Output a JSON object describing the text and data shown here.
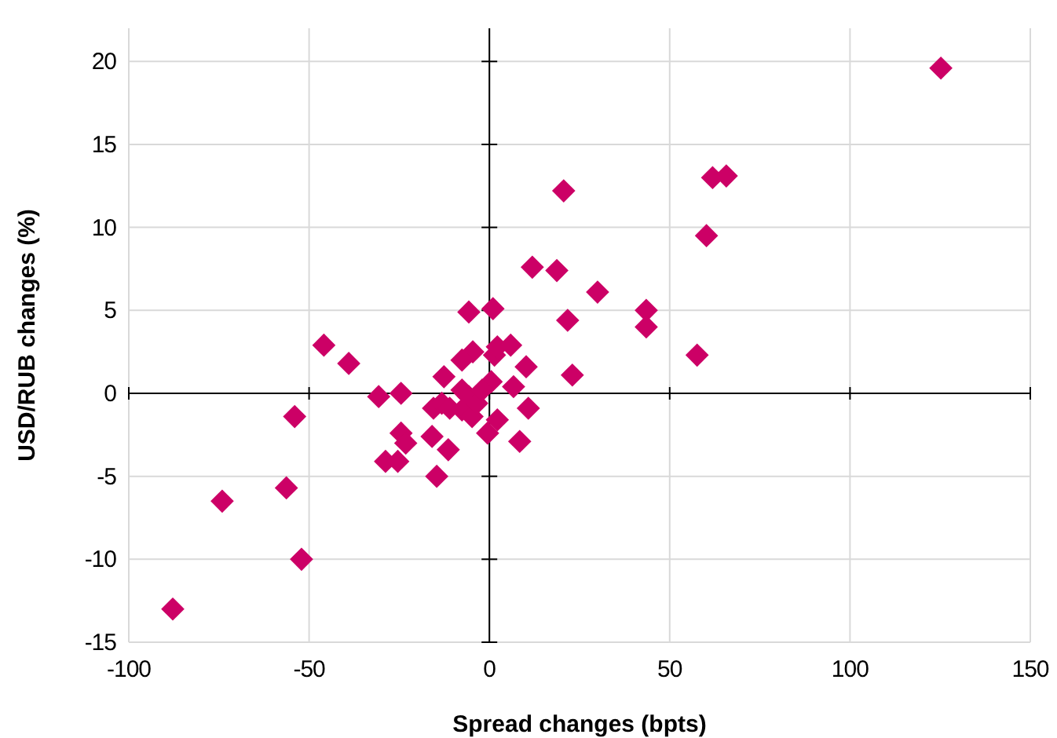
{
  "chart_data": {
    "type": "scatter",
    "xlabel": "Spread changes (bpts)",
    "ylabel": "USD/RUB changes (%)",
    "xlim": [
      -100,
      150
    ],
    "xticks": [
      -100,
      -50,
      0,
      50,
      100,
      150
    ],
    "ylim": [
      -15,
      22
    ],
    "yticks": [
      -15,
      -10,
      -5,
      0,
      5,
      10,
      15,
      20
    ],
    "grid": true,
    "marker": "diamond",
    "series": [
      {
        "color": "#cc0066",
        "x": [
          -87.8,
          -74.1,
          -56.3,
          -52.1,
          -54.0,
          -45.9,
          -39.0,
          -30.7,
          -24.5,
          -24.5,
          -23.2,
          -28.8,
          -25.4,
          -15.9,
          -14.6,
          -11.4,
          -12.6,
          -15.5,
          -13.2,
          -11.0,
          -7.6,
          -7.6,
          -4.8,
          -5.7,
          -4.6,
          -7.6,
          -5.7,
          -3.5,
          1.0,
          1.4,
          2.2,
          5.9,
          0.5,
          -2.0,
          -0.5,
          2.2,
          6.7,
          10.2,
          10.8,
          8.4,
          11.9,
          18.7,
          20.6,
          21.7,
          23.0,
          30.0,
          43.5,
          43.5,
          57.6,
          60.2,
          61.9,
          65.7,
          125.2
        ],
        "values": [
          -13.0,
          -6.5,
          -5.7,
          -10.0,
          -1.4,
          2.9,
          1.8,
          -0.2,
          0.0,
          -2.4,
          -3.0,
          -4.1,
          -4.1,
          -2.6,
          -5.0,
          -3.4,
          1.0,
          -0.9,
          -0.6,
          -0.9,
          0.2,
          -1.0,
          -1.4,
          4.9,
          2.5,
          2.0,
          -0.2,
          -0.6,
          5.1,
          2.3,
          2.8,
          2.9,
          0.7,
          0.2,
          -2.4,
          -1.6,
          0.4,
          1.6,
          -0.9,
          -2.9,
          7.6,
          7.4,
          12.2,
          4.4,
          1.1,
          6.1,
          5.0,
          4.0,
          2.3,
          9.5,
          13.0,
          13.1,
          19.6
        ]
      }
    ]
  }
}
